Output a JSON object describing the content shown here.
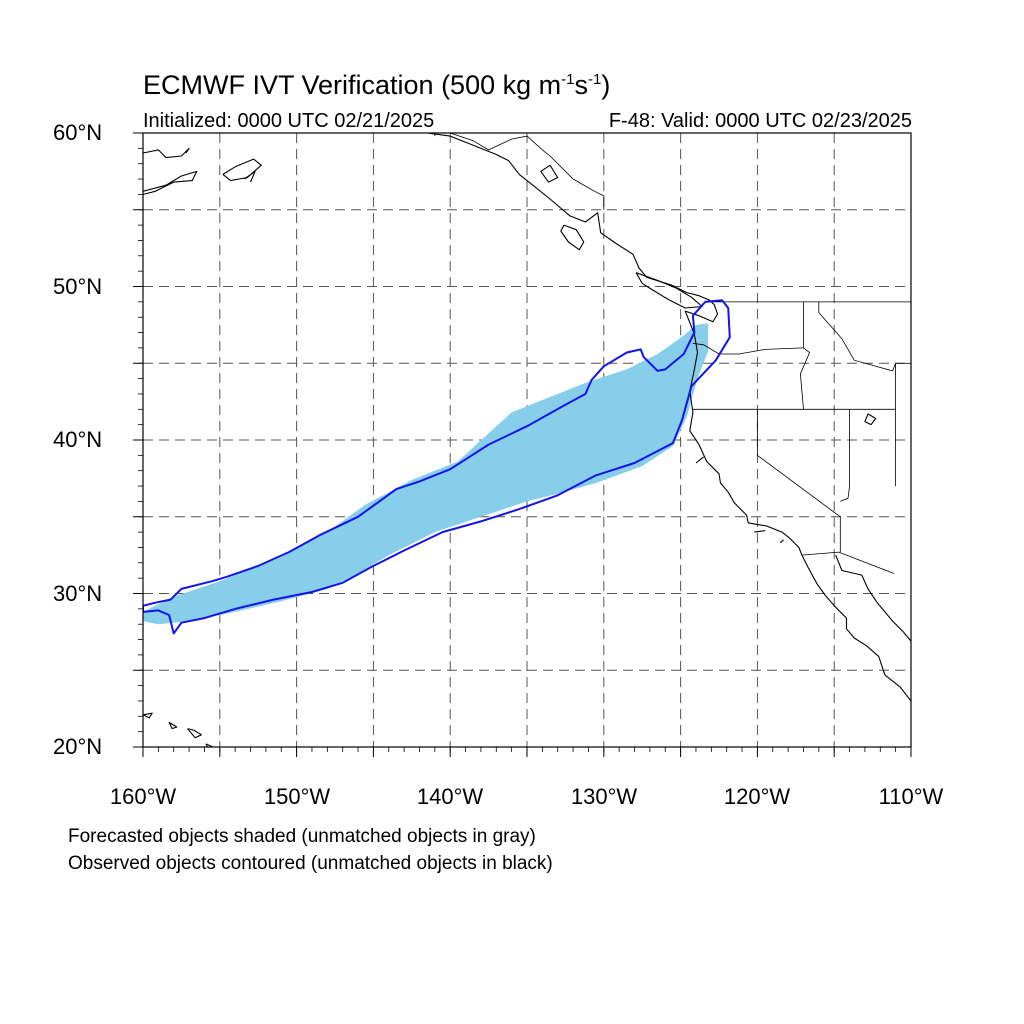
{
  "title": {
    "prefix": "ECMWF IVT Verification (500 kg m",
    "exp1": "-1",
    "mid": "s",
    "exp2": "-1",
    "suffix": ")"
  },
  "initialized": "Initialized: 0000 UTC 02/21/2025",
  "valid": "F-48: Valid: 0000 UTC 02/23/2025",
  "lat_labels": [
    "60°N",
    "50°N",
    "40°N",
    "30°N",
    "20°N"
  ],
  "lon_labels": [
    "160°W",
    "150°W",
    "140°W",
    "130°W",
    "120°W",
    "110°W"
  ],
  "notes": {
    "forecast": "Forecasted objects shaded (unmatched objects in gray)",
    "observed": "Observed objects contoured (unmatched objects in black)"
  },
  "colors": {
    "forecast_fill": "#87ceeb",
    "observed_contour": "#1414e6",
    "coastline": "#000000",
    "grid": "#555555"
  },
  "map_data": {
    "extent": {
      "lon": [
        -160,
        -110
      ],
      "lat": [
        20,
        60
      ]
    },
    "grid_step": {
      "lon": 5,
      "lat": 5
    },
    "forecast_object": [
      [
        -160,
        28.8
      ],
      [
        -158,
        29.8
      ],
      [
        -155,
        30.8
      ],
      [
        -151,
        32.4
      ],
      [
        -148,
        34
      ],
      [
        -145.5,
        35.8
      ],
      [
        -142.5,
        37.4
      ],
      [
        -139.5,
        38.6
      ],
      [
        -138.2,
        39.8
      ],
      [
        -136,
        41.8
      ],
      [
        -133.5,
        42.8
      ],
      [
        -131,
        43.8
      ],
      [
        -128.5,
        44.6
      ],
      [
        -126.5,
        45.6
      ],
      [
        -124.8,
        46.8
      ],
      [
        -124,
        47.5
      ],
      [
        -123.2,
        47.6
      ],
      [
        -123.2,
        45.8
      ],
      [
        -123.9,
        44
      ],
      [
        -124.6,
        41.5
      ],
      [
        -125.5,
        39.6
      ],
      [
        -127.5,
        38.3
      ],
      [
        -130.5,
        37.2
      ],
      [
        -133,
        36.5
      ],
      [
        -135,
        36
      ],
      [
        -138,
        35
      ],
      [
        -141,
        34
      ],
      [
        -144,
        32.5
      ],
      [
        -146,
        31.3
      ],
      [
        -148,
        30.3
      ],
      [
        -151,
        29.5
      ],
      [
        -154,
        28.8
      ],
      [
        -157,
        28.2
      ],
      [
        -159,
        28
      ],
      [
        -160,
        28.2
      ]
    ],
    "observed_object": [
      [
        -160,
        29.2
      ],
      [
        -159.2,
        29.4
      ],
      [
        -158.2,
        29.6
      ],
      [
        -157.5,
        30.3
      ],
      [
        -155.5,
        30.8
      ],
      [
        -154.5,
        31.1
      ],
      [
        -152.5,
        31.8
      ],
      [
        -150.5,
        32.7
      ],
      [
        -148.5,
        33.8
      ],
      [
        -146,
        35
      ],
      [
        -143.5,
        36.8
      ],
      [
        -142,
        37.3
      ],
      [
        -140,
        38.1
      ],
      [
        -137.5,
        39.7
      ],
      [
        -135,
        40.9
      ],
      [
        -132.5,
        42.3
      ],
      [
        -131.2,
        43
      ],
      [
        -130.8,
        43.9
      ],
      [
        -130,
        44.8
      ],
      [
        -128.5,
        45.7
      ],
      [
        -127.6,
        45.9
      ],
      [
        -127.4,
        45.4
      ],
      [
        -126.5,
        44.5
      ],
      [
        -126,
        44.6
      ],
      [
        -124.8,
        45.6
      ],
      [
        -124.1,
        47
      ],
      [
        -124.2,
        48.1
      ],
      [
        -123.4,
        49
      ],
      [
        -122.3,
        49.1
      ],
      [
        -121.9,
        48.6
      ],
      [
        -121.8,
        46.7
      ],
      [
        -122.7,
        45.2
      ],
      [
        -124.3,
        43.5
      ],
      [
        -124.9,
        41.3
      ],
      [
        -125.5,
        39.8
      ],
      [
        -128,
        38.5
      ],
      [
        -130.5,
        37.7
      ],
      [
        -133,
        36.4
      ],
      [
        -135.5,
        35.5
      ],
      [
        -138,
        34.7
      ],
      [
        -140.5,
        34
      ],
      [
        -143,
        32.8
      ],
      [
        -145,
        31.8
      ],
      [
        -147,
        30.7
      ],
      [
        -149,
        30.1
      ],
      [
        -151.5,
        29.6
      ],
      [
        -154,
        29
      ],
      [
        -156,
        28.4
      ],
      [
        -157.5,
        28.1
      ],
      [
        -158,
        27.4
      ],
      [
        -158.3,
        28.6
      ],
      [
        -159,
        28.9
      ],
      [
        -160,
        28.8
      ]
    ],
    "coastlines": [
      [
        [
          -160,
          56.2
        ],
        [
          -158.5,
          56.6
        ],
        [
          -157.5,
          57.2
        ],
        [
          -156.5,
          57.5
        ],
        [
          -156.8,
          56.9
        ],
        [
          -158,
          56.8
        ],
        [
          -159.2,
          56.2
        ],
        [
          -160,
          56
        ]
      ],
      [
        [
          -160,
          58.7
        ],
        [
          -159,
          58.9
        ],
        [
          -158.5,
          58.4
        ],
        [
          -157.5,
          58.5
        ],
        [
          -157,
          59
        ],
        [
          -157.2,
          58.7
        ]
      ],
      [
        [
          -154.8,
          57.3
        ],
        [
          -154,
          57.8
        ],
        [
          -152.8,
          58.3
        ],
        [
          -152.3,
          57.9
        ],
        [
          -153.2,
          57.1
        ],
        [
          -154.3,
          56.9
        ],
        [
          -154.8,
          57.3
        ]
      ],
      [
        [
          -153.4,
          57.0
        ],
        [
          -152.7,
          57.5
        ],
        [
          -153.0,
          56.8
        ]
      ],
      [
        [
          -141.5,
          60
        ],
        [
          -140,
          59.8
        ],
        [
          -138.5,
          59.2
        ],
        [
          -137,
          58.6
        ],
        [
          -136.2,
          58.2
        ],
        [
          -135.5,
          57.3
        ],
        [
          -134.5,
          56.5
        ],
        [
          -133.5,
          55.7
        ],
        [
          -132.2,
          54.6
        ],
        [
          -131.2,
          54.2
        ],
        [
          -130.4,
          54.8
        ],
        [
          -130.2,
          53.5
        ],
        [
          -129.2,
          52.8
        ],
        [
          -128.1,
          52.1
        ],
        [
          -127.7,
          51.2
        ],
        [
          -127.2,
          50.6
        ],
        [
          -125.6,
          50.1
        ],
        [
          -124.6,
          49.6
        ],
        [
          -123.8,
          49.4
        ],
        [
          -123.1,
          49.1
        ],
        [
          -122.8,
          48.8
        ],
        [
          -122.6,
          48.2
        ],
        [
          -122.9,
          47.7
        ],
        [
          -123.8,
          48.1
        ],
        [
          -124.7,
          48.4
        ],
        [
          -124.1,
          46.9
        ],
        [
          -123.9,
          45.7
        ],
        [
          -124.1,
          44.6
        ],
        [
          -124.4,
          43.2
        ],
        [
          -124.2,
          41.8
        ],
        [
          -124.4,
          40.6
        ],
        [
          -123.8,
          39.7
        ],
        [
          -123.3,
          38.6
        ],
        [
          -122.5,
          37.8
        ],
        [
          -122.4,
          37.2
        ],
        [
          -121.9,
          36.6
        ],
        [
          -121.5,
          35.9
        ],
        [
          -120.7,
          35.1
        ],
        [
          -120.6,
          34.6
        ],
        [
          -119.4,
          34.4
        ],
        [
          -118.4,
          34.0
        ],
        [
          -117.9,
          33.6
        ],
        [
          -117.3,
          33.0
        ],
        [
          -117.1,
          32.5
        ],
        [
          -116.7,
          31.7
        ],
        [
          -116.1,
          30.6
        ],
        [
          -115.6,
          29.9
        ],
        [
          -114.9,
          29.1
        ],
        [
          -114.2,
          28.4
        ],
        [
          -114.2,
          27.7
        ],
        [
          -113.7,
          27.1
        ],
        [
          -112.9,
          26.6
        ],
        [
          -112.1,
          25.9
        ],
        [
          -111.7,
          24.7
        ],
        [
          -110.7,
          23.9
        ],
        [
          -110,
          23
        ]
      ],
      [
        [
          -127.9,
          50.9
        ],
        [
          -126.5,
          50.4
        ],
        [
          -125.3,
          49.9
        ],
        [
          -124.3,
          49.3
        ],
        [
          -123.6,
          48.7
        ],
        [
          -124.7,
          48.6
        ],
        [
          -125.7,
          49.1
        ],
        [
          -126.7,
          49.7
        ],
        [
          -127.5,
          50.2
        ],
        [
          -127.9,
          50.9
        ]
      ],
      [
        [
          -132.6,
          54.0
        ],
        [
          -131.8,
          53.7
        ],
        [
          -131.3,
          52.9
        ],
        [
          -131.6,
          52.4
        ],
        [
          -132.3,
          52.9
        ],
        [
          -132.8,
          53.6
        ],
        [
          -132.6,
          54.0
        ]
      ],
      [
        [
          -133.5,
          57.9
        ],
        [
          -133,
          57.1
        ],
        [
          -133.6,
          56.8
        ],
        [
          -134.1,
          57.5
        ],
        [
          -133.5,
          57.9
        ]
      ],
      [
        [
          -114.9,
          32.5
        ],
        [
          -114.5,
          31.5
        ],
        [
          -113.2,
          31.2
        ],
        [
          -112.8,
          30.3
        ],
        [
          -112.2,
          29.4
        ],
        [
          -111.2,
          28.2
        ],
        [
          -110.5,
          27.5
        ],
        [
          -110,
          26.9
        ]
      ],
      [
        [
          -160,
          22.1
        ],
        [
          -159.4,
          22.2
        ],
        [
          -159.6,
          21.9
        ],
        [
          -160,
          22.1
        ]
      ],
      [
        [
          -158.3,
          21.6
        ],
        [
          -157.8,
          21.3
        ],
        [
          -158.1,
          21.2
        ],
        [
          -158.3,
          21.6
        ]
      ],
      [
        [
          -157.1,
          21.2
        ],
        [
          -156.7,
          21.1
        ],
        [
          -156.2,
          20.8
        ],
        [
          -156.6,
          20.6
        ],
        [
          -157.1,
          21.2
        ]
      ],
      [
        [
          -155.9,
          20.2
        ],
        [
          -155.0,
          19.8
        ],
        [
          -155.6,
          19.5
        ],
        [
          -155.9,
          20.2
        ]
      ],
      [
        [
          -112.8,
          41.7
        ],
        [
          -112.3,
          41.4
        ],
        [
          -112.6,
          41.0
        ],
        [
          -113.0,
          41.2
        ],
        [
          -112.8,
          41.7
        ]
      ],
      [
        [
          -118.3,
          33.5
        ],
        [
          -118.5,
          33.3
        ]
      ],
      [
        [
          -119.5,
          34.1
        ],
        [
          -120.2,
          34.0
        ]
      ],
      [
        [
          -124,
          38.5
        ],
        [
          -123.5,
          38.9
        ]
      ]
    ],
    "borders": [
      [
        [
          -141,
          60
        ],
        [
          -141,
          59.8
        ]
      ],
      [
        [
          -140,
          60
        ],
        [
          -138.5,
          59.5
        ],
        [
          -137.5,
          58.9
        ],
        [
          -136,
          59.6
        ],
        [
          -135,
          59.8
        ],
        [
          -134,
          58.9
        ],
        [
          -133.5,
          58.5
        ],
        [
          -132,
          57
        ],
        [
          -130.6,
          56.2
        ],
        [
          -130,
          55.9
        ],
        [
          -130.0,
          55.0
        ]
      ],
      [
        [
          -123.2,
          49
        ],
        [
          -110,
          49
        ]
      ],
      [
        [
          -124.2,
          46.3
        ],
        [
          -123.5,
          46.2
        ],
        [
          -122.5,
          45.6
        ],
        [
          -121.2,
          45.6
        ],
        [
          -119.5,
          45.9
        ],
        [
          -117,
          46
        ]
      ],
      [
        [
          -117,
          49
        ],
        [
          -117,
          46
        ],
        [
          -116.6,
          45.7
        ],
        [
          -117.2,
          44.3
        ],
        [
          -117,
          42
        ]
      ],
      [
        [
          -124.2,
          42
        ],
        [
          -111,
          42
        ]
      ],
      [
        [
          -120,
          42
        ],
        [
          -120,
          39
        ],
        [
          -114.6,
          35
        ],
        [
          -114.6,
          32.7
        ]
      ],
      [
        [
          -114,
          42
        ],
        [
          -114,
          37
        ],
        [
          -114.1,
          36.2
        ],
        [
          -114.6,
          36
        ]
      ],
      [
        [
          -111,
          45
        ],
        [
          -111,
          41
        ],
        [
          -111,
          37
        ],
        [
          -111,
          37
        ]
      ],
      [
        [
          -117.1,
          32.5
        ],
        [
          -114.7,
          32.7
        ],
        [
          -111.1,
          31.3
        ]
      ],
      [
        [
          -116,
          49
        ],
        [
          -116,
          48.3
        ],
        [
          -114.5,
          46.6
        ],
        [
          -113.7,
          45.2
        ],
        [
          -111.2,
          44.5
        ],
        [
          -111,
          45
        ]
      ],
      [
        [
          -111,
          45
        ],
        [
          -110,
          45
        ]
      ]
    ]
  }
}
